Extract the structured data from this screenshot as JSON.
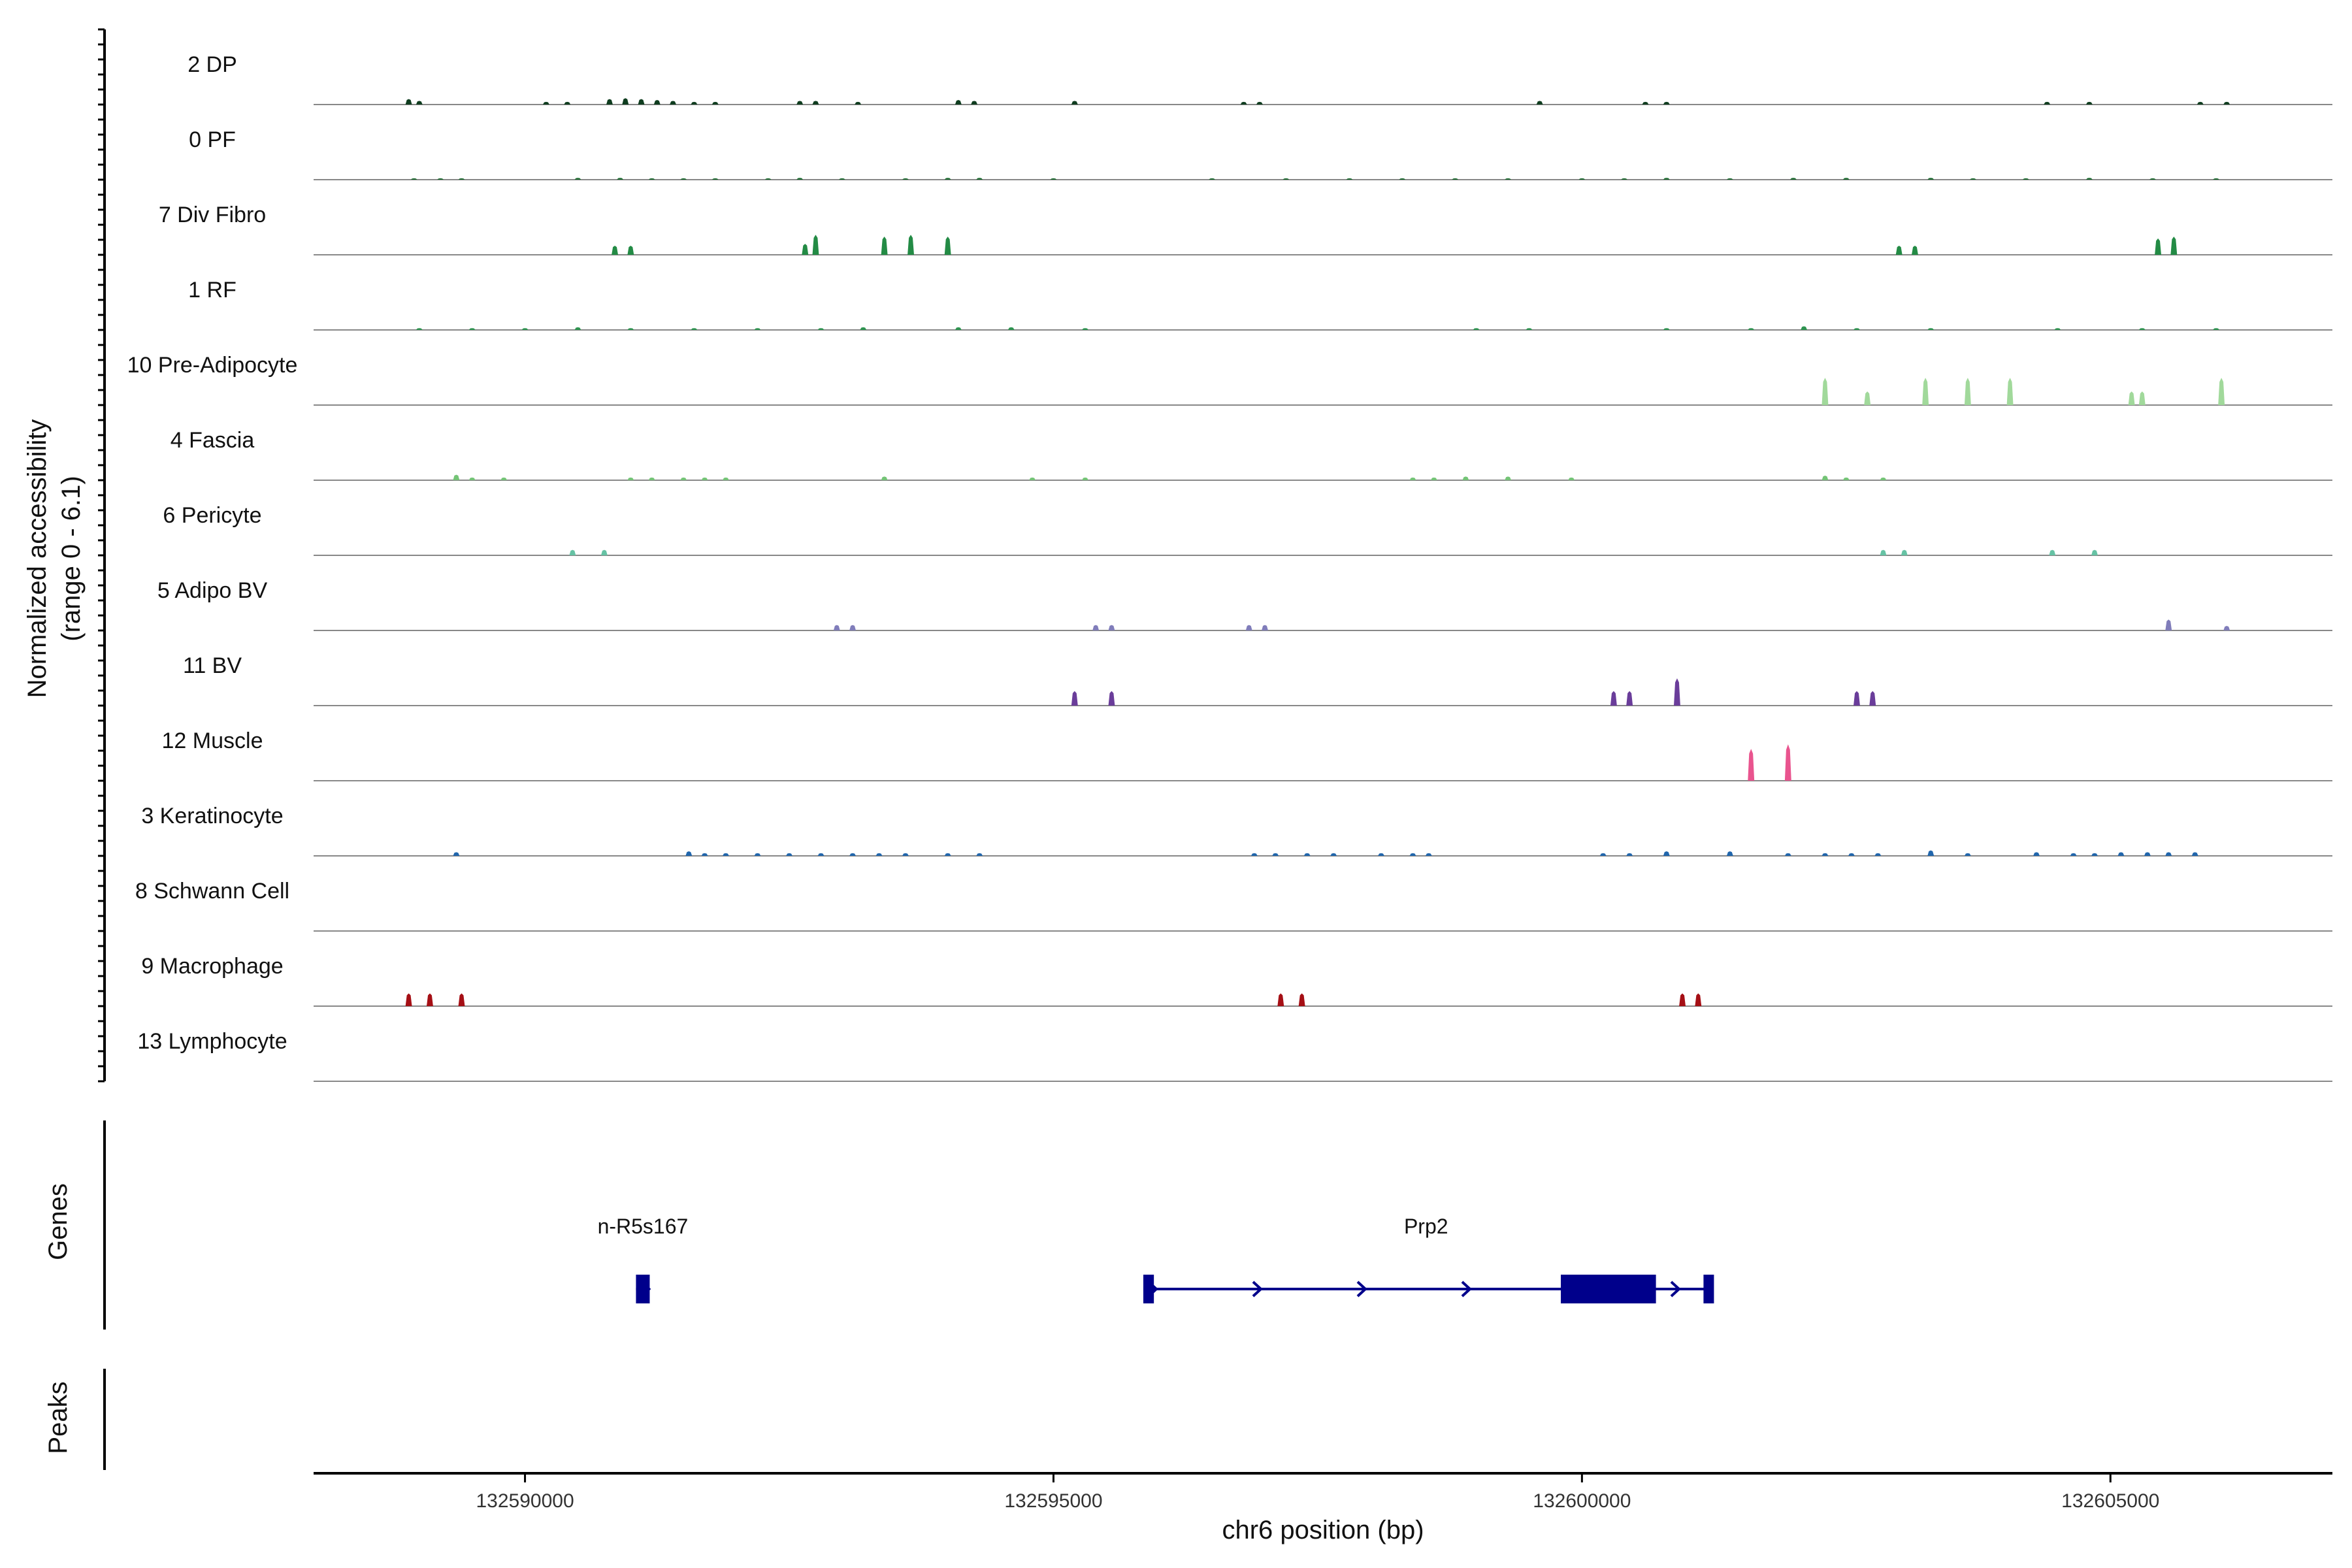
{
  "chart_data": {
    "type": "area",
    "ylabel_line1": "Normalized accessibility",
    "ylabel_line2": "(range 0 - 6.1)",
    "xlabel": "chr6 position (bp)",
    "xlim": [
      132588000,
      132607100
    ],
    "ylim": [
      0,
      6.1
    ],
    "x_ticks": [
      132590000,
      132595000,
      132600000,
      132605000
    ],
    "x_tick_labels": [
      "132590000",
      "132595000",
      "132600000",
      "132605000"
    ],
    "tracks": [
      {
        "name": "2 DP",
        "color": "#0f3d1f",
        "peaks": [
          [
            132588900,
            0.6
          ],
          [
            132589000,
            0.4
          ],
          [
            132590200,
            0.3
          ],
          [
            132590400,
            0.3
          ],
          [
            132590800,
            0.6
          ],
          [
            132590950,
            0.7
          ],
          [
            132591100,
            0.6
          ],
          [
            132591250,
            0.5
          ],
          [
            132591400,
            0.4
          ],
          [
            132591600,
            0.3
          ],
          [
            132591800,
            0.3
          ],
          [
            132592600,
            0.4
          ],
          [
            132592750,
            0.4
          ],
          [
            132593150,
            0.3
          ],
          [
            132594100,
            0.5
          ],
          [
            132594250,
            0.4
          ],
          [
            132595200,
            0.4
          ],
          [
            132596800,
            0.3
          ],
          [
            132596950,
            0.3
          ],
          [
            132599600,
            0.4
          ],
          [
            132600600,
            0.3
          ],
          [
            132600800,
            0.3
          ],
          [
            132604400,
            0.3
          ],
          [
            132604800,
            0.3
          ],
          [
            132605850,
            0.3
          ],
          [
            132606100,
            0.3
          ]
        ]
      },
      {
        "name": "0 PF",
        "color": "#1f6b32",
        "peaks": [
          [
            132588950,
            0.15
          ],
          [
            132589200,
            0.15
          ],
          [
            132589400,
            0.15
          ],
          [
            132590500,
            0.2
          ],
          [
            132590900,
            0.2
          ],
          [
            132591200,
            0.15
          ],
          [
            132591500,
            0.15
          ],
          [
            132591800,
            0.15
          ],
          [
            132592300,
            0.15
          ],
          [
            132592600,
            0.2
          ],
          [
            132593000,
            0.15
          ],
          [
            132593600,
            0.15
          ],
          [
            132594000,
            0.2
          ],
          [
            132594300,
            0.2
          ],
          [
            132595000,
            0.15
          ],
          [
            132596500,
            0.15
          ],
          [
            132597200,
            0.15
          ],
          [
            132597800,
            0.15
          ],
          [
            132598300,
            0.15
          ],
          [
            132598800,
            0.15
          ],
          [
            132599300,
            0.15
          ],
          [
            132600000,
            0.15
          ],
          [
            132600400,
            0.15
          ],
          [
            132600800,
            0.2
          ],
          [
            132601400,
            0.15
          ],
          [
            132602000,
            0.2
          ],
          [
            132602500,
            0.2
          ],
          [
            132603300,
            0.2
          ],
          [
            132603700,
            0.15
          ],
          [
            132604200,
            0.15
          ],
          [
            132604800,
            0.2
          ],
          [
            132605400,
            0.15
          ],
          [
            132606000,
            0.15
          ]
        ]
      },
      {
        "name": "7 Div Fibro",
        "color": "#238b45",
        "peaks": [
          [
            132590850,
            1.0
          ],
          [
            132591000,
            1.0
          ],
          [
            132592650,
            1.2
          ],
          [
            132592750,
            2.2
          ],
          [
            132593400,
            2.0
          ],
          [
            132593650,
            2.2
          ],
          [
            132594000,
            2.0
          ],
          [
            132603000,
            1.0
          ],
          [
            132603150,
            1.0
          ],
          [
            132605450,
            1.8
          ],
          [
            132605600,
            2.0
          ]
        ]
      },
      {
        "name": "1 RF",
        "color": "#2e9450",
        "peaks": [
          [
            132589000,
            0.2
          ],
          [
            132589500,
            0.2
          ],
          [
            132590000,
            0.2
          ],
          [
            132590500,
            0.3
          ],
          [
            132591000,
            0.2
          ],
          [
            132591600,
            0.2
          ],
          [
            132592200,
            0.2
          ],
          [
            132592800,
            0.2
          ],
          [
            132593200,
            0.3
          ],
          [
            132594100,
            0.3
          ],
          [
            132594600,
            0.3
          ],
          [
            132595300,
            0.2
          ],
          [
            132599000,
            0.2
          ],
          [
            132599500,
            0.2
          ],
          [
            132600800,
            0.2
          ],
          [
            132601600,
            0.2
          ],
          [
            132602100,
            0.4
          ],
          [
            132602600,
            0.2
          ],
          [
            132603300,
            0.2
          ],
          [
            132604500,
            0.2
          ],
          [
            132605300,
            0.2
          ],
          [
            132606000,
            0.2
          ]
        ]
      },
      {
        "name": "10 Pre-Adipocyte",
        "color": "#a1d99b",
        "peaks": [
          [
            132602300,
            3.0
          ],
          [
            132602700,
            1.5
          ],
          [
            132603250,
            3.0
          ],
          [
            132603650,
            3.0
          ],
          [
            132604050,
            3.0
          ],
          [
            132605200,
            1.5
          ],
          [
            132605300,
            1.5
          ],
          [
            132606050,
            3.0
          ]
        ]
      },
      {
        "name": "4 Fascia",
        "color": "#74c476",
        "peaks": [
          [
            132589350,
            0.6
          ],
          [
            132589500,
            0.3
          ],
          [
            132589800,
            0.3
          ],
          [
            132591000,
            0.3
          ],
          [
            132591200,
            0.3
          ],
          [
            132591500,
            0.3
          ],
          [
            132591700,
            0.3
          ],
          [
            132591900,
            0.3
          ],
          [
            132593400,
            0.4
          ],
          [
            132594800,
            0.3
          ],
          [
            132595300,
            0.3
          ],
          [
            132598400,
            0.3
          ],
          [
            132598600,
            0.3
          ],
          [
            132598900,
            0.4
          ],
          [
            132599300,
            0.4
          ],
          [
            132599900,
            0.3
          ],
          [
            132602300,
            0.5
          ],
          [
            132602500,
            0.3
          ],
          [
            132602850,
            0.3
          ]
        ]
      },
      {
        "name": "6 Pericyte",
        "color": "#66c2a4",
        "peaks": [
          [
            132590450,
            0.6
          ],
          [
            132590750,
            0.6
          ],
          [
            132602850,
            0.6
          ],
          [
            132603050,
            0.6
          ],
          [
            132604450,
            0.6
          ],
          [
            132604850,
            0.6
          ]
        ]
      },
      {
        "name": "5 Adipo BV",
        "color": "#807dba",
        "peaks": [
          [
            132592950,
            0.6
          ],
          [
            132593100,
            0.6
          ],
          [
            132595400,
            0.6
          ],
          [
            132595550,
            0.6
          ],
          [
            132596850,
            0.6
          ],
          [
            132597000,
            0.6
          ],
          [
            132605550,
            1.2
          ],
          [
            132606100,
            0.5
          ]
        ]
      },
      {
        "name": "11 BV",
        "color": "#6a3d9a",
        "peaks": [
          [
            132595200,
            1.6
          ],
          [
            132595550,
            1.6
          ],
          [
            132600300,
            1.6
          ],
          [
            132600450,
            1.6
          ],
          [
            132600900,
            3.0
          ],
          [
            132602600,
            1.6
          ],
          [
            132602750,
            1.6
          ]
        ]
      },
      {
        "name": "12 Muscle",
        "color": "#e9548e",
        "peaks": [
          [
            132601600,
            3.5
          ],
          [
            132601950,
            4.0
          ]
        ]
      },
      {
        "name": "3 Keratinocyte",
        "color": "#2166ac",
        "peaks": [
          [
            132589350,
            0.4
          ],
          [
            132591550,
            0.5
          ],
          [
            132591700,
            0.3
          ],
          [
            132591900,
            0.3
          ],
          [
            132592200,
            0.3
          ],
          [
            132592500,
            0.3
          ],
          [
            132592800,
            0.3
          ],
          [
            132593100,
            0.3
          ],
          [
            132593350,
            0.3
          ],
          [
            132593600,
            0.3
          ],
          [
            132594000,
            0.3
          ],
          [
            132594300,
            0.3
          ],
          [
            132596900,
            0.3
          ],
          [
            132597100,
            0.3
          ],
          [
            132597400,
            0.3
          ],
          [
            132597650,
            0.3
          ],
          [
            132598100,
            0.3
          ],
          [
            132598400,
            0.3
          ],
          [
            132598550,
            0.3
          ],
          [
            132600200,
            0.3
          ],
          [
            132600450,
            0.3
          ],
          [
            132600800,
            0.5
          ],
          [
            132601400,
            0.5
          ],
          [
            132601950,
            0.3
          ],
          [
            132602300,
            0.3
          ],
          [
            132602550,
            0.3
          ],
          [
            132602800,
            0.3
          ],
          [
            132603300,
            0.6
          ],
          [
            132603650,
            0.3
          ],
          [
            132604300,
            0.4
          ],
          [
            132604650,
            0.3
          ],
          [
            132604850,
            0.3
          ],
          [
            132605100,
            0.4
          ],
          [
            132605350,
            0.4
          ],
          [
            132605550,
            0.4
          ],
          [
            132605800,
            0.4
          ]
        ]
      },
      {
        "name": "8 Schwann Cell",
        "color": "#555555",
        "peaks": []
      },
      {
        "name": "9 Macrophage",
        "color": "#a50f15",
        "peaks": [
          [
            132588900,
            1.4
          ],
          [
            132589100,
            1.4
          ],
          [
            132589400,
            1.4
          ],
          [
            132597150,
            1.4
          ],
          [
            132597350,
            1.4
          ],
          [
            132600950,
            1.4
          ],
          [
            132601100,
            1.4
          ]
        ]
      },
      {
        "name": "13 Lymphocyte",
        "color": "#555555",
        "peaks": []
      }
    ],
    "genes_panel_label": "Genes",
    "peaks_panel_label": "Peaks",
    "genes": [
      {
        "name": "n-R5s167",
        "start": 132591050,
        "end": 132591180,
        "exons": [
          [
            132591050,
            132591180
          ]
        ],
        "strand": "+"
      },
      {
        "name": "Prp2",
        "start": 132595850,
        "end": 132601200,
        "exons": [
          [
            132595850,
            132595950
          ],
          [
            132599800,
            132600700
          ],
          [
            132601150,
            132601200
          ]
        ],
        "strand": "+"
      }
    ],
    "gene_color": "#00008b",
    "grid": false,
    "legend": "none"
  }
}
